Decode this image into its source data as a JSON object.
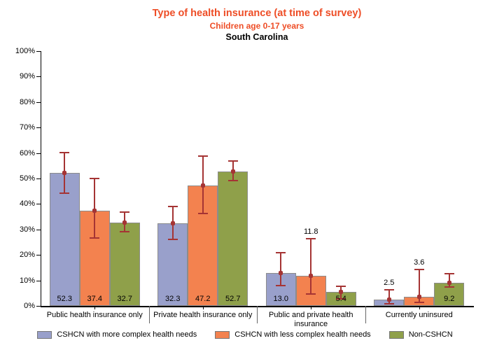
{
  "header": {
    "title": "Type of health insurance (at time of survey)",
    "subtitle": "Children age 0-17 years",
    "region": "South Carolina"
  },
  "colors": {
    "title_accent": "#EE4D26",
    "axis": "#000000",
    "bar_border": "#8C8C8C",
    "error_bar": "#A53434",
    "divider": "#666666",
    "text": "#000000"
  },
  "chart_data": {
    "type": "bar",
    "title": "Type of health insurance (at time of survey)",
    "subtitle": "Children age 0-17 years",
    "region_label": "South Carolina",
    "categories": [
      "Public health insurance only",
      "Private health insurance only",
      "Public and private health insurance",
      "Currently uninsured"
    ],
    "series": [
      {
        "name": "CSHCN with more complex health needs",
        "color": "#99A0CB",
        "values": [
          "52.3",
          "32.3",
          "13.0",
          "2.5"
        ],
        "ci_low": [
          44.3,
          26.1,
          8.0,
          0.8
        ],
        "ci_high": [
          60.2,
          39.0,
          21.0,
          6.3
        ],
        "label_pos": [
          "inside",
          "inside",
          "inside",
          "above"
        ]
      },
      {
        "name": "CSHCN with less complex health needs",
        "color": "#F3824F",
        "values": [
          "37.4",
          "47.2",
          "11.8",
          "3.6"
        ],
        "ci_low": [
          26.6,
          36.3,
          4.7,
          1.5
        ],
        "ci_high": [
          50.0,
          58.8,
          26.3,
          14.3
        ],
        "label_pos": [
          "inside",
          "inside",
          "above",
          "above"
        ]
      },
      {
        "name": "Non-CSHCN",
        "color": "#8FA04A",
        "values": [
          "32.7",
          "52.7",
          "5.4",
          "9.2"
        ],
        "ci_low": [
          29.2,
          49.2,
          2.7,
          7.4
        ],
        "ci_high": [
          36.9,
          56.9,
          7.7,
          12.6
        ],
        "label_pos": [
          "inside",
          "inside",
          "inside",
          "inside"
        ]
      }
    ],
    "ylim": [
      0,
      100
    ],
    "ytick_step": 10,
    "ytick_labels": [
      "0%",
      "10%",
      "20%",
      "30%",
      "40%",
      "50%",
      "60%",
      "70%",
      "80%",
      "90%",
      "100%"
    ],
    "grid": false,
    "error_bars": true,
    "legend_position": "bottom"
  }
}
